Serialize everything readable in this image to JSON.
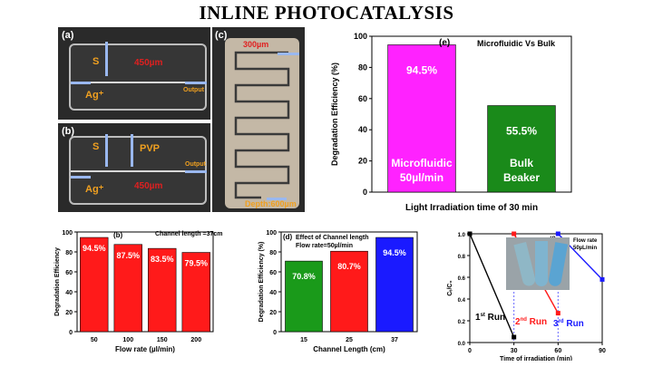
{
  "page": {
    "title": "INLINE PHOTOCATALYSIS"
  },
  "photos": {
    "a": {
      "label": "(a)",
      "s": "S",
      "ag": "Ag⁺",
      "dim": "450µm",
      "output": "Output"
    },
    "b": {
      "label": "(b)",
      "s": "S",
      "pvp": "PVP",
      "ag": "Ag⁺",
      "dim": "450µm",
      "output": "Output"
    },
    "c": {
      "label": "(c)",
      "width": "300µm",
      "depth": "Depth:600µm"
    }
  },
  "chart_data": [
    {
      "id": "e",
      "type": "bar",
      "panel": "(e)",
      "title": "Microfluidic Vs Bulk",
      "ylabel": "Degradation Efficiency (%)",
      "xlabel": "Light Irradiation time of 30 min",
      "ylim": [
        0,
        100
      ],
      "yticks": [
        "0",
        "20",
        "40",
        "60",
        "80",
        "100"
      ],
      "categories": [
        "Microfluidic 50µl/min",
        "Bulk Beaker"
      ],
      "values": [
        94.5,
        55.5
      ],
      "value_labels": [
        "94.5%",
        "55.5%"
      ],
      "bar_text": [
        [
          "Microfluidic",
          "50µl/min"
        ],
        [
          "Bulk",
          "Beaker"
        ]
      ],
      "colors": [
        "#ff22ff",
        "#1a8a1a"
      ]
    },
    {
      "id": "b",
      "type": "bar",
      "panel": "(b)",
      "title": "Channel length =37cm",
      "ylabel": "Degradation Efficiency",
      "xlabel": "Flow rate (µl/min)",
      "ylim": [
        0,
        100
      ],
      "yticks": [
        "0",
        "20",
        "40",
        "60",
        "80",
        "100"
      ],
      "categories": [
        "50",
        "100",
        "150",
        "200"
      ],
      "values": [
        94.5,
        87.5,
        83.5,
        79.5
      ],
      "value_labels": [
        "94.5%",
        "87.5%",
        "83.5%",
        "79.5%"
      ],
      "colors": [
        "#ff1a1a"
      ]
    },
    {
      "id": "d",
      "type": "bar",
      "panel": "(d)",
      "title": [
        "Effect of Channel length",
        "Flow rate=50µl/min"
      ],
      "ylabel": "Degradation Efficiency (%)",
      "xlabel": "Channel Length (cm)",
      "ylim": [
        0,
        100
      ],
      "yticks": [
        "0",
        "20",
        "40",
        "60",
        "80",
        "100"
      ],
      "categories": [
        "15",
        "25",
        "37"
      ],
      "values": [
        70.8,
        80.7,
        94.5
      ],
      "value_labels": [
        "70.8%",
        "80.7%",
        "94.5%"
      ],
      "colors": [
        "#1a9a1a",
        "#ff1a1a",
        "#1a1aff"
      ]
    },
    {
      "id": "f",
      "type": "line",
      "panel": "(f)",
      "ylabel": "Cₜ/C₀",
      "xlabel": "Time of irradiation (min)",
      "xlim": [
        0,
        90
      ],
      "ylim": [
        0,
        1.0
      ],
      "xticks": [
        "0",
        "30",
        "60",
        "90"
      ],
      "yticks": [
        "0.0",
        "0.2",
        "0.4",
        "0.6",
        "0.8",
        "1.0"
      ],
      "annotation": [
        "Flow rate",
        "50µL/min"
      ],
      "series": [
        {
          "name": "1st Run",
          "x": [
            0,
            30
          ],
          "y": [
            1.0,
            0.05
          ],
          "color": "#000000"
        },
        {
          "name": "2nd Run",
          "x": [
            30,
            60
          ],
          "y": [
            1.0,
            0.27
          ],
          "color": "#ff1a1a"
        },
        {
          "name": "3rd Run",
          "x": [
            60,
            90
          ],
          "y": [
            1.0,
            0.58
          ],
          "color": "#1a1aff"
        }
      ],
      "run_labels": [
        {
          "num": "1",
          "sup": "st",
          "text": " Run",
          "color": "#000000"
        },
        {
          "num": "2",
          "sup": "nd",
          "text": " Run",
          "color": "#ff1a1a"
        },
        {
          "num": "3",
          "sup": "rd",
          "text": " Run",
          "color": "#1a1aff"
        }
      ]
    }
  ]
}
